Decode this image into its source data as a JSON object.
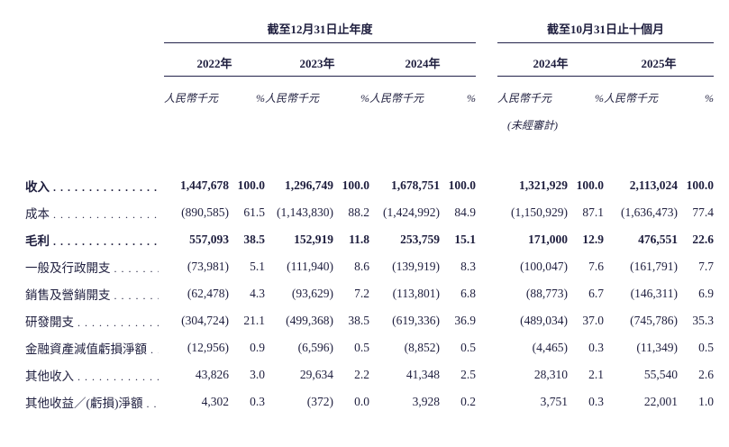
{
  "table": {
    "group_headers": [
      {
        "label": "截至12月31日止年度"
      },
      {
        "label": "截至10月31日止十個月"
      }
    ],
    "year_headers": [
      "2022年",
      "2023年",
      "2024年",
      "2024年",
      "2025年"
    ],
    "unit_label": "人民幣千元",
    "pct_label": "%",
    "unaudited_note": "(未經審計)",
    "colors": {
      "text": "#1e1e3e",
      "rule": "#23234a",
      "background": "#ffffff"
    },
    "rows": [
      {
        "label": "收入",
        "bold": true,
        "cells": [
          "1,447,678",
          "100.0",
          "1,296,749",
          "100.0",
          "1,678,751",
          "100.0",
          "1,321,929",
          "100.0",
          "2,113,024",
          "100.0"
        ]
      },
      {
        "label": "成本",
        "bold": false,
        "cells": [
          "(890,585)",
          "61.5",
          "(1,143,830)",
          "88.2",
          "(1,424,992)",
          "84.9",
          "(1,150,929)",
          "87.1",
          "(1,636,473)",
          "77.4"
        ]
      },
      {
        "label": "毛利",
        "bold": true,
        "cells": [
          "557,093",
          "38.5",
          "152,919",
          "11.8",
          "253,759",
          "15.1",
          "171,000",
          "12.9",
          "476,551",
          "22.6"
        ]
      },
      {
        "label": "一般及行政開支",
        "bold": false,
        "cells": [
          "(73,981)",
          "5.1",
          "(111,940)",
          "8.6",
          "(139,919)",
          "8.3",
          "(100,047)",
          "7.6",
          "(161,791)",
          "7.7"
        ]
      },
      {
        "label": "銷售及營銷開支",
        "bold": false,
        "cells": [
          "(62,478)",
          "4.3",
          "(93,629)",
          "7.2",
          "(113,801)",
          "6.8",
          "(88,773)",
          "6.7",
          "(146,311)",
          "6.9"
        ]
      },
      {
        "label": "研發開支",
        "bold": false,
        "cells": [
          "(304,724)",
          "21.1",
          "(499,368)",
          "38.5",
          "(619,336)",
          "36.9",
          "(489,034)",
          "37.0",
          "(745,786)",
          "35.3"
        ]
      },
      {
        "label": "金融資產減值虧損淨額",
        "bold": false,
        "cells": [
          "(12,956)",
          "0.9",
          "(6,596)",
          "0.5",
          "(8,852)",
          "0.5",
          "(4,465)",
          "0.3",
          "(11,349)",
          "0.5"
        ]
      },
      {
        "label": "其他收入",
        "bold": false,
        "cells": [
          "43,826",
          "3.0",
          "29,634",
          "2.2",
          "41,348",
          "2.5",
          "28,310",
          "2.1",
          "55,540",
          "2.6"
        ]
      },
      {
        "label": "其他收益／(虧損)淨額",
        "bold": false,
        "cells": [
          "4,302",
          "0.3",
          "(372)",
          "0.0",
          "3,928",
          "0.2",
          "3,751",
          "0.3",
          "22,001",
          "1.0"
        ]
      }
    ]
  }
}
